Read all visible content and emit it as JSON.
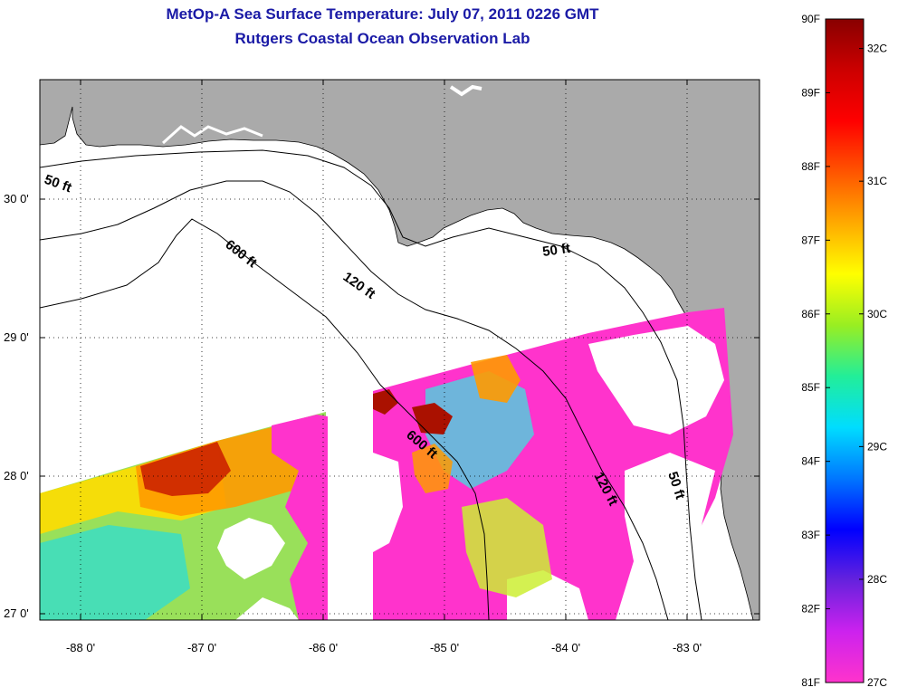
{
  "title_line1": "MetOp-A Sea Surface Temperature:  July 07, 2011 0226 GMT",
  "title_line2": "Rutgers Coastal Ocean Observation Lab",
  "lat_labels": [
    "30 0'",
    "29 0'",
    "28 0'",
    "27 0'"
  ],
  "lon_labels": [
    "-88 0'",
    "-87 0'",
    "-86 0'",
    "-85 0'",
    "-84 0'",
    "-83 0'"
  ],
  "contour_labels": {
    "c50_west": "50 ft",
    "c600_north": "600 ft",
    "c120_north": "120 ft",
    "c50_east": "50 ft",
    "c600_south": "600 ft",
    "c120_south": "120 ft",
    "c50_south": "50 ft"
  },
  "colorbar": {
    "f_labels": [
      "90F",
      "89F",
      "88F",
      "87F",
      "86F",
      "85F",
      "84F",
      "83F",
      "82F",
      "81F"
    ],
    "c_labels": [
      "32C",
      "31C",
      "30C",
      "29C",
      "28C",
      "27C"
    ],
    "colors": [
      "#ff33cc",
      "#cc22ee",
      "#6622dd",
      "#0000ff",
      "#0077ff",
      "#00ddff",
      "#22ee99",
      "#99ee22",
      "#ffff00",
      "#ffaa00",
      "#ff5500",
      "#ff0000",
      "#cc0000",
      "#880000"
    ]
  },
  "colors": {
    "land": "#aaaaaa",
    "water": "#ffffff",
    "title": "#1a1aa6"
  }
}
